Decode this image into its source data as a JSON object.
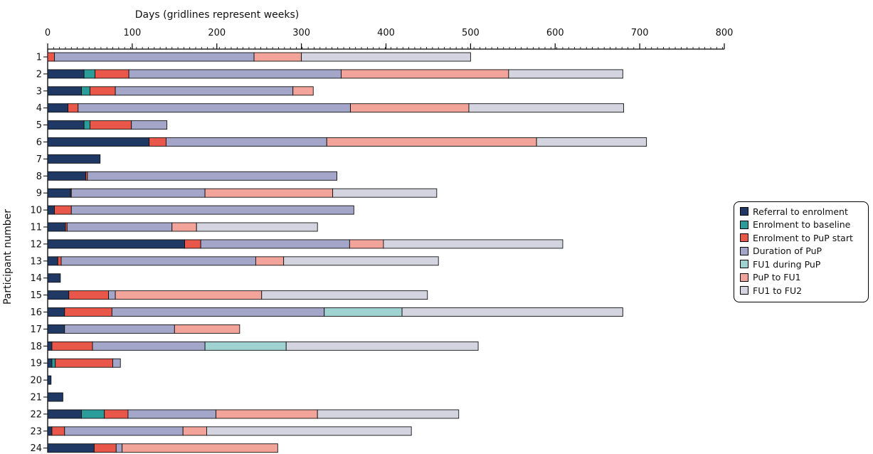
{
  "chart_data": {
    "type": "bar",
    "orientation": "horizontal",
    "stacked": true,
    "title": "",
    "xlabel": "Days (gridlines represent weeks)",
    "ylabel": "Participant number",
    "xlim": [
      0,
      800
    ],
    "x_ticks": [
      "0",
      "100",
      "200",
      "300",
      "400",
      "500",
      "600",
      "700",
      "800"
    ],
    "x_axis_position": "top",
    "legend_position": "right",
    "categories": [
      "1",
      "2",
      "3",
      "4",
      "5",
      "6",
      "7",
      "8",
      "9",
      "10",
      "11",
      "12",
      "13",
      "14",
      "15",
      "16",
      "17",
      "18",
      "19",
      "20",
      "21",
      "22",
      "23",
      "24"
    ],
    "series": [
      {
        "name": "Referral to enrolment",
        "color": "#1f3864",
        "values": [
          0,
          43,
          40,
          24,
          43,
          120,
          62,
          45,
          27,
          8,
          21,
          162,
          12,
          15,
          25,
          20,
          20,
          5,
          5,
          4,
          18,
          40,
          5,
          55
        ]
      },
      {
        "name": "Enrolment to baseline",
        "color": "#2a9d9a",
        "values": [
          0,
          13,
          10,
          0,
          7,
          0,
          0,
          0,
          0,
          0,
          0,
          0,
          0,
          0,
          0,
          0,
          0,
          0,
          4,
          0,
          0,
          27,
          0,
          0
        ]
      },
      {
        "name": "Enrolment to PuP start",
        "color": "#e8574a",
        "values": [
          8,
          40,
          30,
          12,
          49,
          20,
          0,
          2,
          1,
          20,
          2,
          19,
          4,
          0,
          47,
          56,
          0,
          48,
          68,
          0,
          0,
          28,
          15,
          26
        ]
      },
      {
        "name": "Duration of PuP",
        "color": "#a3a6c8",
        "values": [
          236,
          251,
          210,
          322,
          42,
          190,
          0,
          295,
          158,
          334,
          124,
          176,
          230,
          0,
          8,
          251,
          130,
          133,
          9,
          0,
          0,
          104,
          140,
          7
        ]
      },
      {
        "name": "FU1 during PuP",
        "color": "#9fd2d0",
        "values": [
          0,
          0,
          0,
          0,
          0,
          0,
          0,
          0,
          0,
          0,
          0,
          0,
          0,
          0,
          0,
          92,
          0,
          96,
          0,
          0,
          0,
          0,
          0,
          0
        ]
      },
      {
        "name": "PuP to FU1",
        "color": "#f2a49a",
        "values": [
          56,
          198,
          24,
          140,
          0,
          248,
          0,
          0,
          151,
          0,
          29,
          40,
          33,
          0,
          173,
          0,
          77,
          0,
          0,
          0,
          0,
          120,
          28,
          184
        ]
      },
      {
        "name": "FU1 to FU2",
        "color": "#d4d4e1",
        "values": [
          200,
          135,
          0,
          183,
          0,
          130,
          0,
          0,
          123,
          0,
          143,
          212,
          183,
          0,
          196,
          261,
          0,
          227,
          0,
          0,
          0,
          167,
          242,
          0
        ]
      }
    ],
    "grid": false
  }
}
